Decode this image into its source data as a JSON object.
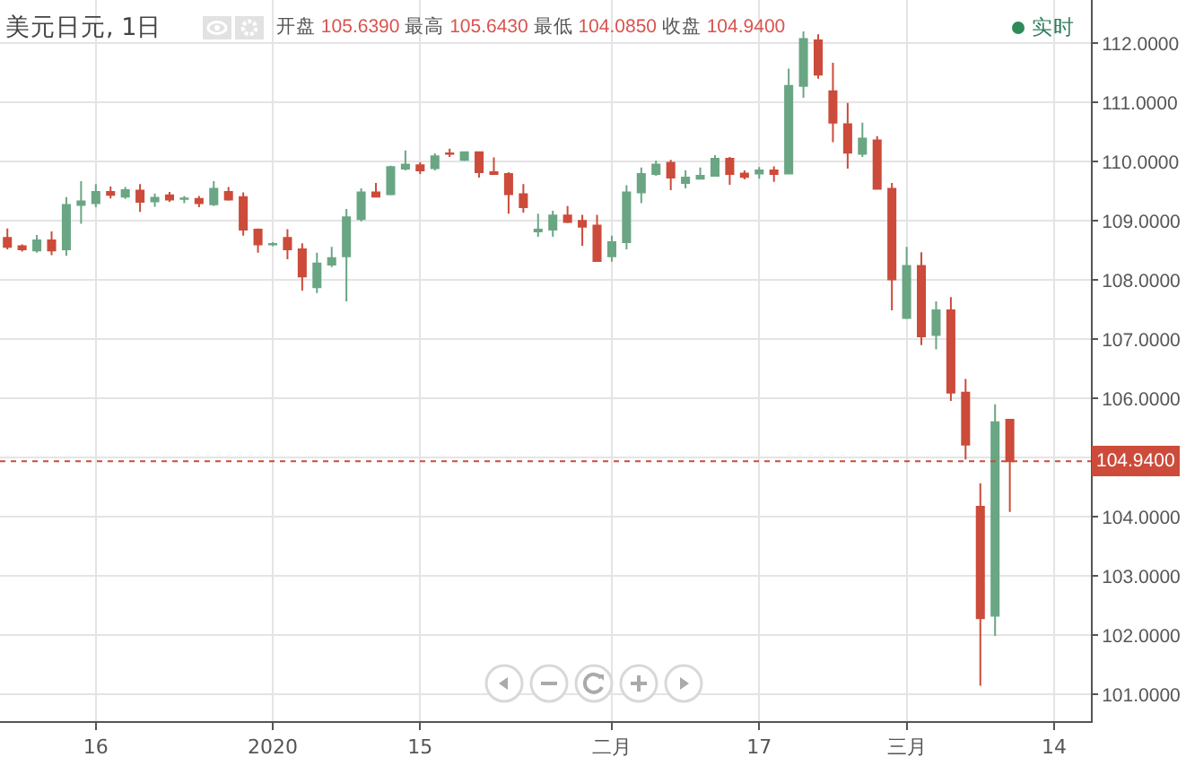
{
  "chart_data": {
    "type": "candlestick",
    "title": "美元日元, 1日",
    "subtitle": "开盘 105.6390 最高 105.6430 最低 104.0850 收盘 104.9400",
    "annotations": [
      "实时"
    ],
    "categories": [
      null,
      null,
      null,
      null,
      null,
      null,
      "16",
      null,
      null,
      null,
      null,
      null,
      null,
      null,
      null,
      null,
      null,
      null,
      "2020",
      null,
      null,
      null,
      null,
      null,
      null,
      null,
      null,
      null,
      "15",
      null,
      null,
      null,
      null,
      null,
      null,
      null,
      null,
      null,
      null,
      null,
      null,
      "二月",
      null,
      null,
      null,
      null,
      null,
      null,
      null,
      null,
      null,
      "17",
      null,
      null,
      null,
      null,
      null,
      null,
      null,
      null,
      null,
      "三月",
      null,
      null,
      null,
      null,
      null,
      null,
      null,
      null,
      null,
      "14",
      null,
      null
    ],
    "ohlc": [
      [
        108.71,
        108.87,
        108.52,
        108.56
      ],
      [
        108.57,
        108.6,
        108.48,
        108.52
      ],
      [
        108.5,
        108.76,
        108.46,
        108.67
      ],
      [
        108.67,
        108.82,
        108.42,
        108.5
      ],
      [
        108.52,
        109.4,
        108.41,
        109.27
      ],
      [
        109.27,
        109.67,
        108.95,
        109.33
      ],
      [
        109.3,
        109.62,
        109.23,
        109.49
      ],
      [
        109.49,
        109.58,
        109.38,
        109.44
      ],
      [
        109.41,
        109.57,
        109.37,
        109.52
      ],
      [
        109.51,
        109.62,
        109.15,
        109.32
      ],
      [
        109.33,
        109.46,
        109.24,
        109.39
      ],
      [
        109.43,
        109.49,
        109.32,
        109.36
      ],
      [
        109.37,
        109.42,
        109.3,
        109.38
      ],
      [
        109.37,
        109.42,
        109.23,
        109.3
      ],
      [
        109.28,
        109.67,
        109.25,
        109.54
      ],
      [
        109.49,
        109.57,
        109.34,
        109.36
      ],
      [
        109.4,
        109.48,
        108.75,
        108.85
      ],
      [
        108.85,
        108.87,
        108.46,
        108.6
      ],
      [
        108.6,
        108.64,
        108.57,
        108.61
      ],
      [
        108.71,
        108.86,
        108.35,
        108.52
      ],
      [
        108.52,
        108.62,
        107.82,
        108.06
      ],
      [
        107.88,
        108.46,
        107.78,
        108.28
      ],
      [
        108.26,
        108.56,
        108.22,
        108.37
      ],
      [
        108.4,
        109.2,
        107.64,
        109.06
      ],
      [
        109.03,
        109.55,
        108.99,
        109.48
      ],
      [
        109.48,
        109.64,
        109.4,
        109.41
      ],
      [
        109.45,
        109.93,
        109.43,
        109.91
      ],
      [
        109.88,
        110.19,
        109.85,
        109.95
      ],
      [
        109.94,
        109.99,
        109.79,
        109.85
      ],
      [
        109.89,
        110.14,
        109.85,
        110.09
      ],
      [
        110.14,
        110.22,
        110.08,
        110.13
      ],
      [
        110.03,
        110.17,
        110.01,
        110.16
      ],
      [
        110.16,
        110.17,
        109.73,
        109.82
      ],
      [
        109.82,
        110.07,
        109.79,
        109.79
      ],
      [
        109.79,
        109.82,
        109.12,
        109.45
      ],
      [
        109.45,
        109.62,
        109.14,
        109.23
      ],
      [
        108.82,
        109.12,
        108.73,
        108.85
      ],
      [
        108.85,
        109.17,
        108.73,
        109.09
      ],
      [
        109.09,
        109.25,
        108.96,
        108.98
      ],
      [
        109.0,
        109.1,
        108.58,
        108.9
      ],
      [
        108.92,
        109.1,
        108.31,
        108.32
      ],
      [
        108.4,
        108.75,
        108.31,
        108.64
      ],
      [
        108.64,
        109.6,
        108.52,
        109.48
      ],
      [
        109.48,
        109.9,
        109.3,
        109.79
      ],
      [
        109.79,
        110.02,
        109.76,
        109.95
      ],
      [
        109.98,
        110.03,
        109.52,
        109.73
      ],
      [
        109.64,
        109.85,
        109.55,
        109.73
      ],
      [
        109.71,
        109.9,
        109.71,
        109.76
      ],
      [
        109.76,
        110.11,
        109.75,
        110.05
      ],
      [
        110.05,
        110.08,
        109.61,
        109.79
      ],
      [
        109.8,
        109.85,
        109.7,
        109.74
      ],
      [
        109.8,
        109.91,
        109.71,
        109.85
      ],
      [
        109.85,
        109.92,
        109.66,
        109.79
      ],
      [
        109.8,
        111.57,
        109.8,
        111.28
      ],
      [
        111.28,
        112.2,
        111.08,
        112.07
      ],
      [
        112.05,
        112.15,
        111.4,
        111.47
      ],
      [
        111.19,
        111.67,
        110.33,
        110.66
      ],
      [
        110.63,
        110.99,
        109.88,
        110.15
      ],
      [
        110.13,
        110.66,
        110.08,
        110.39
      ],
      [
        110.36,
        110.43,
        109.54,
        109.54
      ],
      [
        109.54,
        109.64,
        107.49,
        108.01
      ],
      [
        107.36,
        108.56,
        107.34,
        108.24
      ],
      [
        108.24,
        108.47,
        106.9,
        107.05
      ],
      [
        107.07,
        107.64,
        106.83,
        107.49
      ],
      [
        107.49,
        107.71,
        105.96,
        106.1
      ],
      [
        106.1,
        106.33,
        104.97,
        105.22
      ],
      [
        104.17,
        104.57,
        101.15,
        102.29
      ],
      [
        102.33,
        105.9,
        101.99,
        105.6
      ],
      [
        105.639,
        105.643,
        104.085,
        104.94
      ],
      null,
      null,
      null,
      null,
      null
    ],
    "colors": [
      "#cc4b3a",
      "#cc4b3a",
      "#6aa684",
      "#cc4b3a",
      "#6aa684",
      "#6aa684",
      "#6aa684",
      "#cc4b3a",
      "#6aa684",
      "#cc4b3a",
      "#6aa684",
      "#cc4b3a",
      "#6aa684",
      "#cc4b3a",
      "#6aa684",
      "#cc4b3a",
      "#cc4b3a",
      "#cc4b3a",
      "#6aa684",
      "#cc4b3a",
      "#cc4b3a",
      "#6aa684",
      "#6aa684",
      "#6aa684",
      "#6aa684",
      "#cc4b3a",
      "#6aa684",
      "#6aa684",
      "#cc4b3a",
      "#6aa684",
      "#cc4b3a",
      "#6aa684",
      "#cc4b3a",
      "#cc4b3a",
      "#cc4b3a",
      "#cc4b3a",
      "#6aa684",
      "#6aa684",
      "#cc4b3a",
      "#cc4b3a",
      "#cc4b3a",
      "#6aa684",
      "#6aa684",
      "#6aa684",
      "#6aa684",
      "#cc4b3a",
      "#6aa684",
      "#6aa684",
      "#6aa684",
      "#cc4b3a",
      "#cc4b3a",
      "#6aa684",
      "#cc4b3a",
      "#6aa684",
      "#6aa684",
      "#cc4b3a",
      "#cc4b3a",
      "#cc4b3a",
      "#6aa684",
      "#cc4b3a",
      "#cc4b3a",
      "#6aa684",
      "#cc4b3a",
      "#6aa684",
      "#cc4b3a",
      "#cc4b3a",
      "#cc4b3a",
      "#6aa684",
      "#cc4b3a",
      null,
      null,
      null,
      null,
      null
    ],
    "ylim": [
      100.55,
      112.73
    ],
    "yticks": [
      {
        "value": 101,
        "label": "101.0000"
      },
      {
        "value": 102,
        "label": "102.0000"
      },
      {
        "value": 103,
        "label": "103.0000"
      },
      {
        "value": 104,
        "label": "104.0000"
      },
      {
        "value": 105,
        "label": null
      },
      {
        "value": 106,
        "label": "106.0000"
      },
      {
        "value": 107,
        "label": "107.0000"
      },
      {
        "value": 108,
        "label": "108.0000"
      },
      {
        "value": 109,
        "label": "109.0000"
      },
      {
        "value": 110,
        "label": "110.0000"
      },
      {
        "value": 111,
        "label": "111.0000"
      },
      {
        "value": 112,
        "label": "112.0000"
      }
    ],
    "ref_lines": [
      {
        "axis": "y",
        "value": 104.94,
        "label": "104.9400",
        "color": "#cc4b3a",
        "line_style": "dotted"
      }
    ],
    "grid": true
  }
}
